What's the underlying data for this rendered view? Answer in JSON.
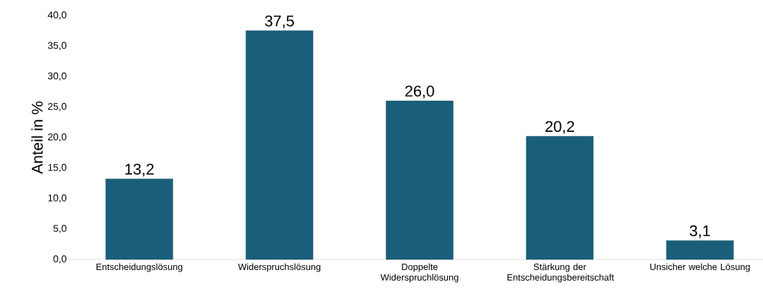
{
  "chart_data": {
    "type": "bar",
    "ylabel": "Anteil in %",
    "categories": [
      "Entscheidungslösung",
      "Widerspruchslösung",
      "Doppelte Widerspruchlösung",
      "Stärkung der Entscheidungsbereitschaft",
      "Unsicher welche Lösung"
    ],
    "values": [
      13.2,
      37.5,
      26.0,
      20.2,
      3.1
    ],
    "value_labels": [
      "13,2",
      "37,5",
      "26,0",
      "20,2",
      "3,1"
    ],
    "color": "#1a5f7a",
    "ylim": [
      0,
      40
    ],
    "yticks": [
      {
        "value": 0,
        "label": "0,0"
      },
      {
        "value": 5,
        "label": "5,0"
      },
      {
        "value": 10,
        "label": "10,0"
      },
      {
        "value": 15,
        "label": "15,0"
      },
      {
        "value": 20,
        "label": "20,0"
      },
      {
        "value": 25,
        "label": "25,0"
      },
      {
        "value": 30,
        "label": "30,0"
      },
      {
        "value": 35,
        "label": "35,0"
      },
      {
        "value": 40,
        "label": "40,0"
      }
    ]
  }
}
